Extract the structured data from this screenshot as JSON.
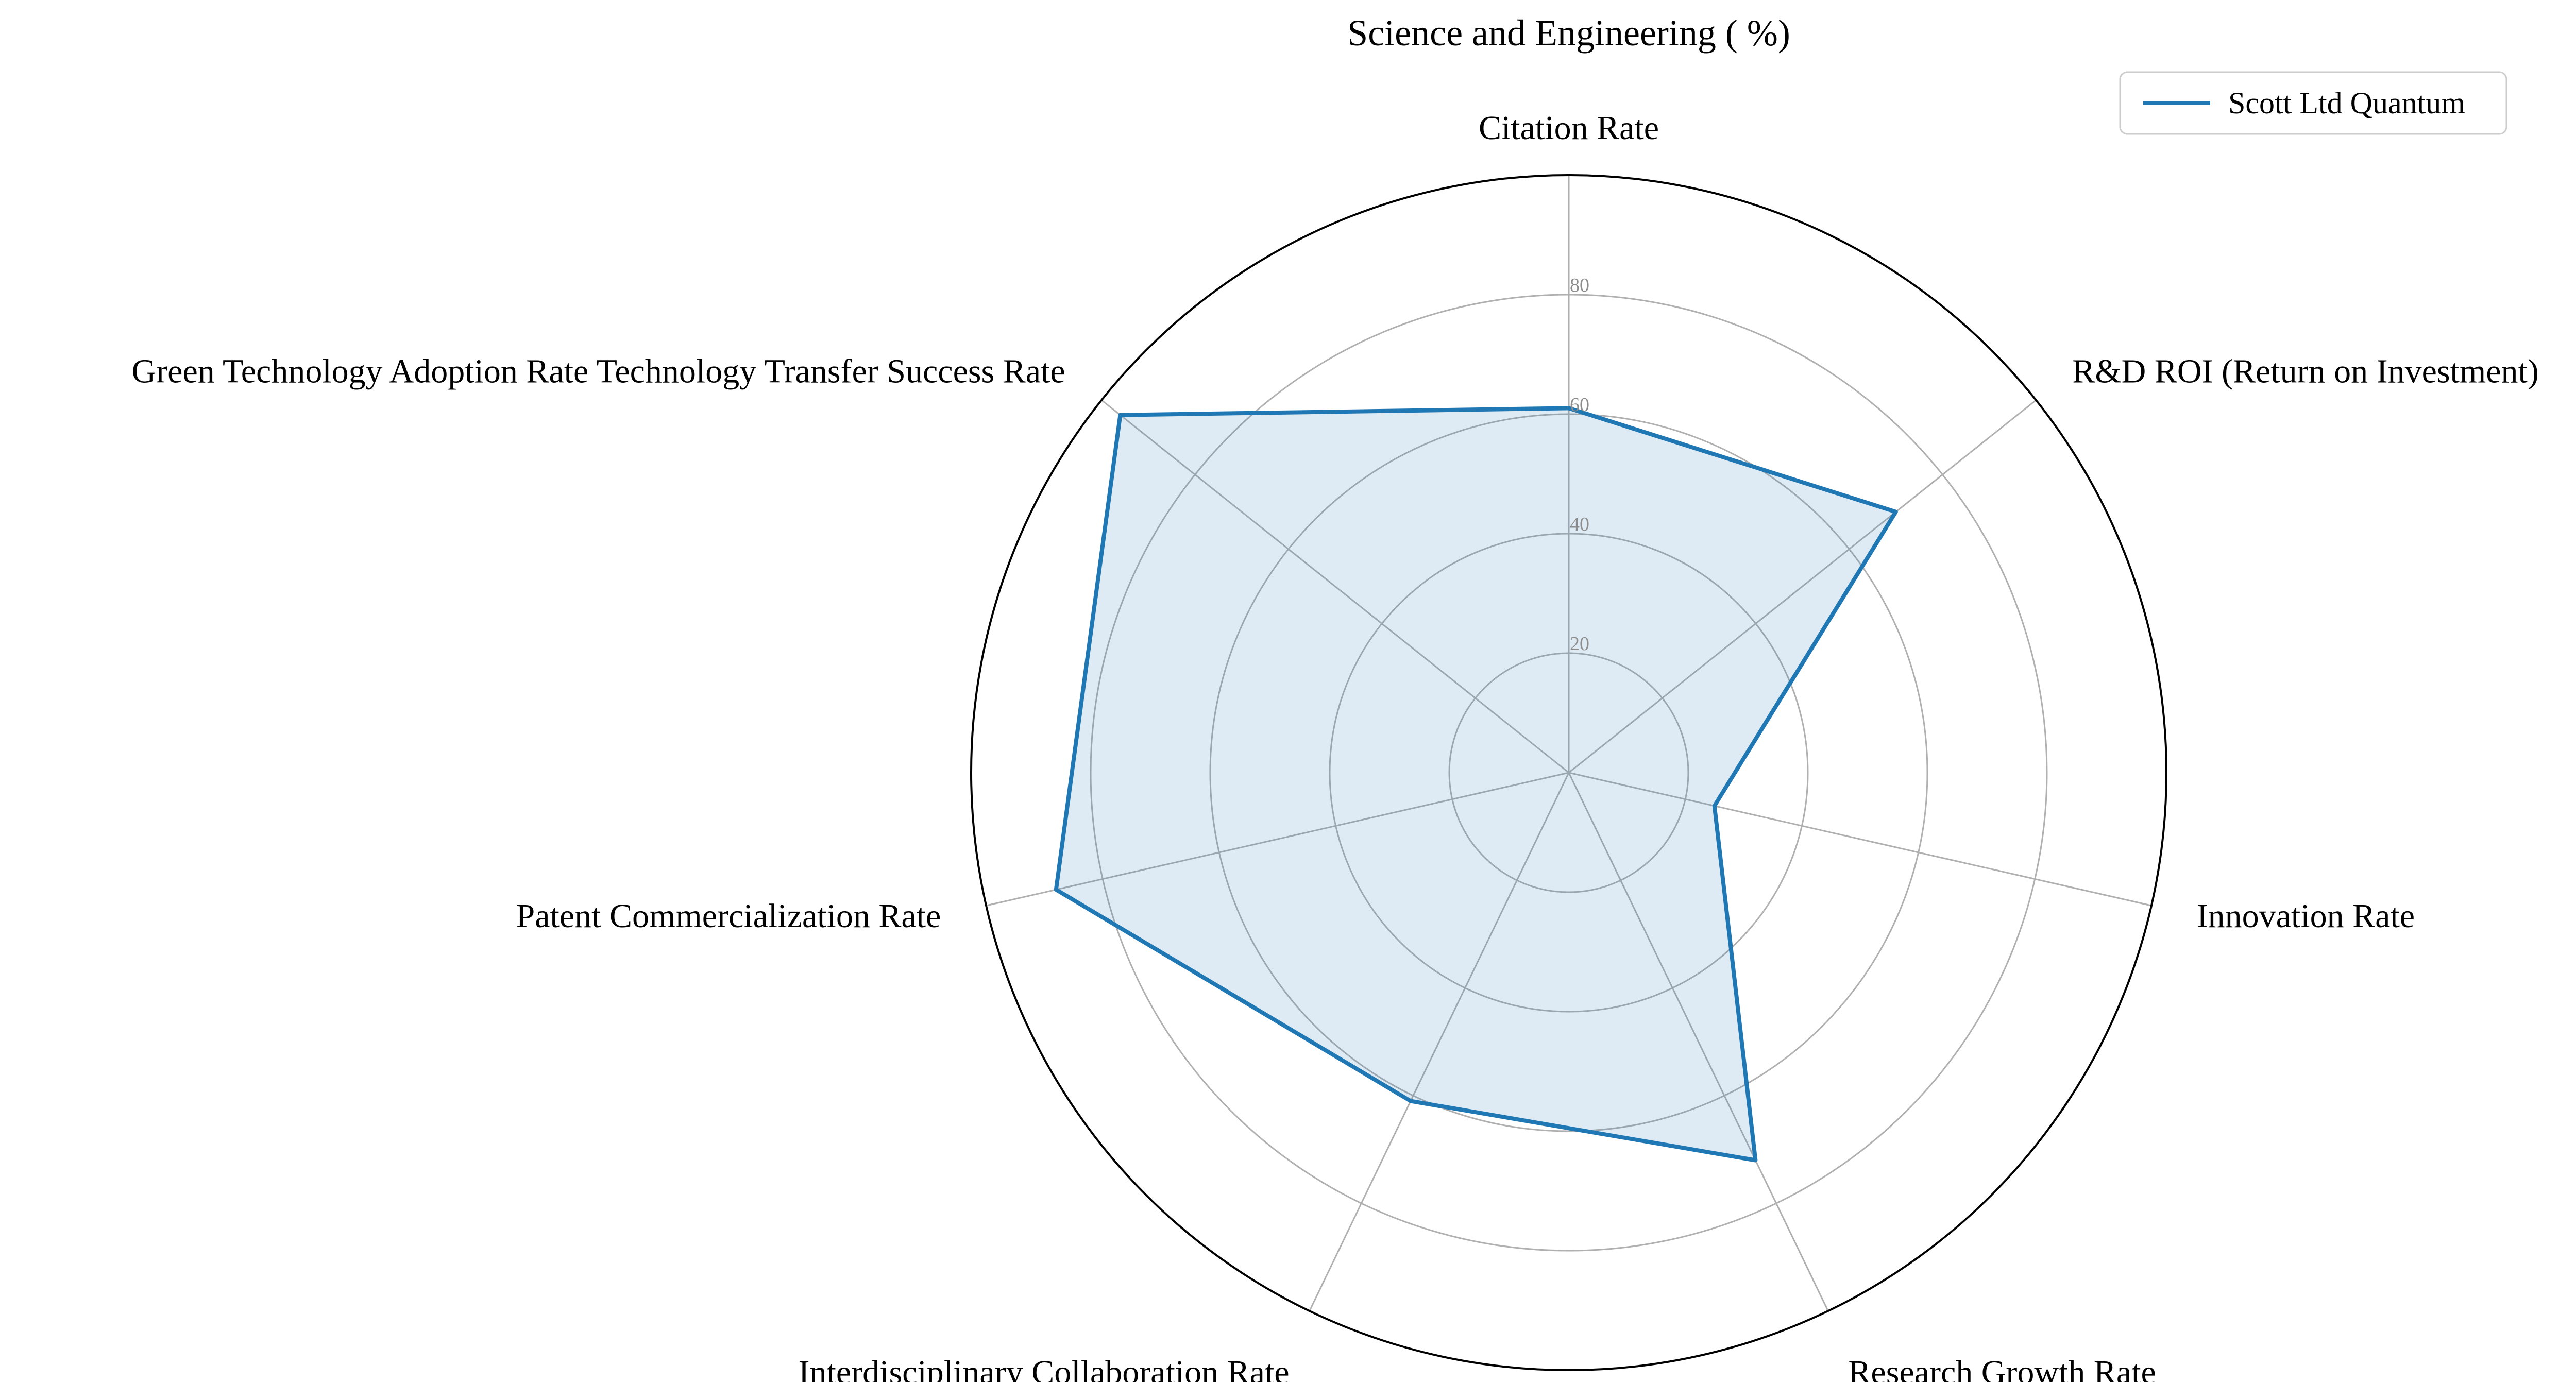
{
  "chart_data": {
    "type": "radar",
    "title": "Science and Engineering ( %)",
    "categories": [
      "Citation Rate",
      "R&D ROI (Return on Investment)",
      "Innovation Rate",
      "Research Growth Rate",
      "Interdisciplinary Collaboration Rate",
      "Patent Commercialization Rate",
      "Green Technology Adoption Rate Technology Transfer Success Rate"
    ],
    "series": [
      {
        "name": "Scott Ltd Quantum",
        "values": [
          61,
          70,
          25,
          72,
          61,
          88,
          96
        ],
        "color": "#1f77b4",
        "fill_color": "#1f77b4"
      }
    ],
    "rlim": [
      0,
      100
    ],
    "rticks": [
      "20",
      "40",
      "60",
      "80"
    ],
    "rtick_values": [
      20,
      40,
      60,
      80
    ],
    "grid": true,
    "legend": "top-right"
  }
}
